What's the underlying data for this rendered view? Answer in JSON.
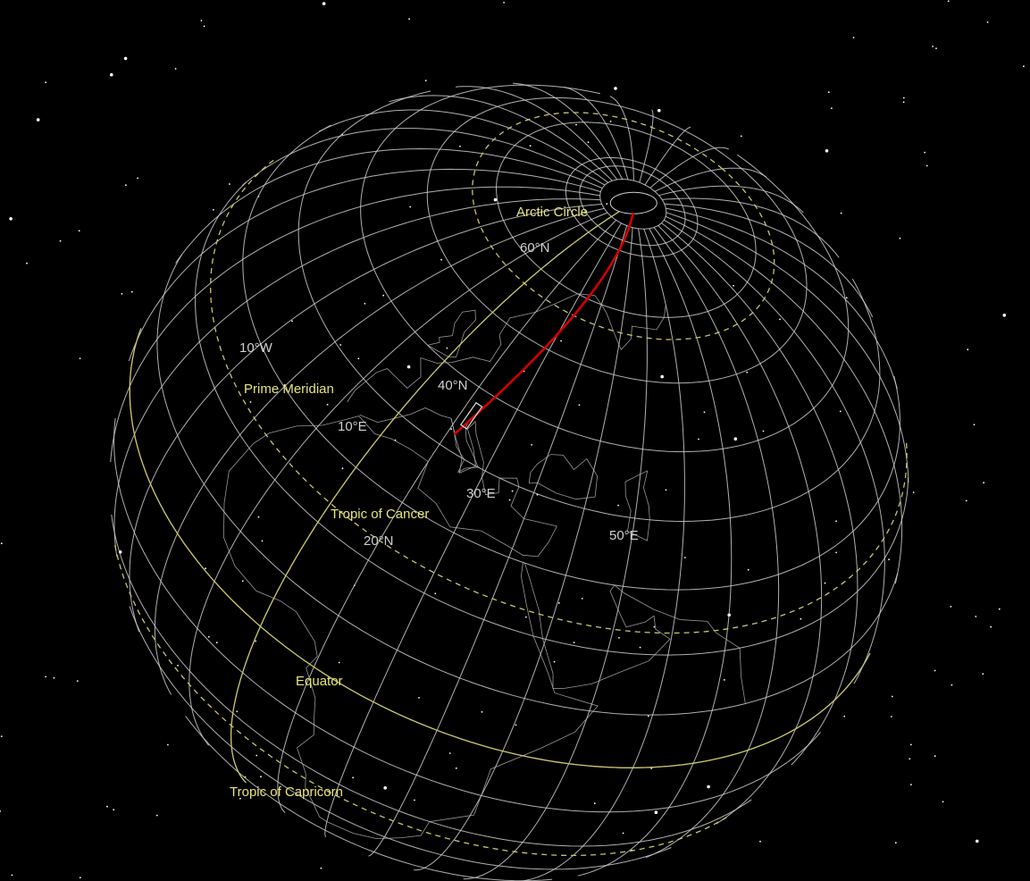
{
  "scene": {
    "background_color": "#000000",
    "grid_color": "#cfcfcf",
    "special_line_color": "#c9c66a",
    "track_color": "#d40000",
    "coastline_color": "#bdbdbd"
  },
  "labels": {
    "arctic_circle": "Arctic Circle",
    "lat_60n": "60°N",
    "lon_10w": "10°W",
    "prime_meridian": "Prime Meridian",
    "lat_40n": "40°N",
    "lon_10e": "10°E",
    "lon_30e": "30°E",
    "tropic_of_cancer": "Tropic of Cancer",
    "lat_20n": "20°N",
    "lon_50e": "50°E",
    "equator": "Equator",
    "tropic_of_capricorn": "Tropic of Capricorn"
  }
}
